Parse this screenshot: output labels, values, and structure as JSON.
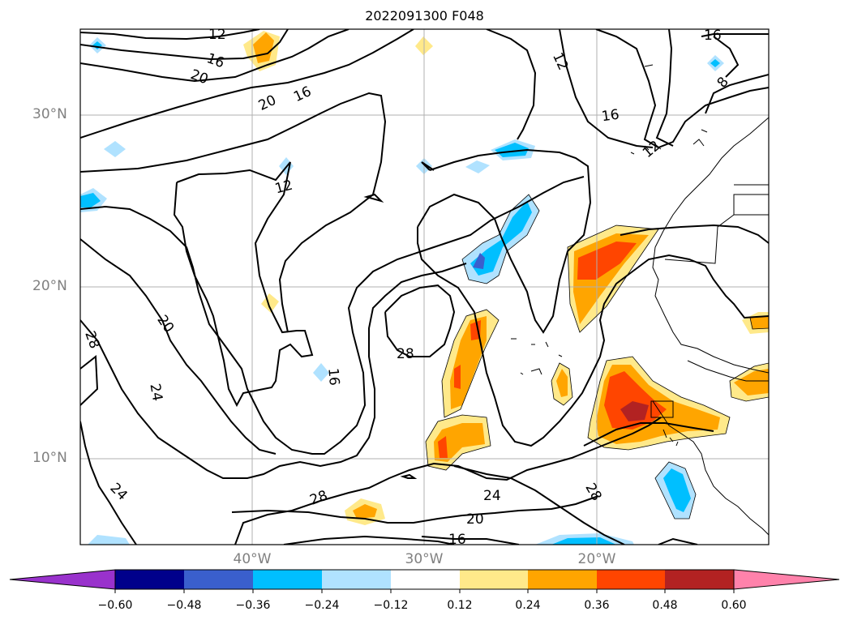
{
  "title": "2022091300 F048",
  "lat_labels": [
    "30°N",
    "20°N",
    "10°N"
  ],
  "lon_labels": [
    "40°W",
    "30°W",
    "20°W"
  ],
  "contour_labels": [
    "12",
    "16",
    "20",
    "20",
    "16",
    "12",
    "12",
    "16",
    "8",
    "12",
    "16",
    "20",
    "24",
    "28",
    "28",
    "28",
    "24",
    "24",
    "20",
    "16",
    "28",
    "16"
  ],
  "colorbar": {
    "ticks": [
      "−0.60",
      "−0.48",
      "−0.36",
      "−0.24",
      "−0.12",
      "0.12",
      "0.24",
      "0.36",
      "0.48",
      "0.60"
    ],
    "colors": [
      "#9932cc",
      "#00008b",
      "#3a5fcd",
      "#00bfff",
      "#b0e2ff",
      "#ffffff",
      "#ffe98a",
      "#ffa500",
      "#ff4500",
      "#b22222",
      "#ff82ab"
    ]
  }
}
